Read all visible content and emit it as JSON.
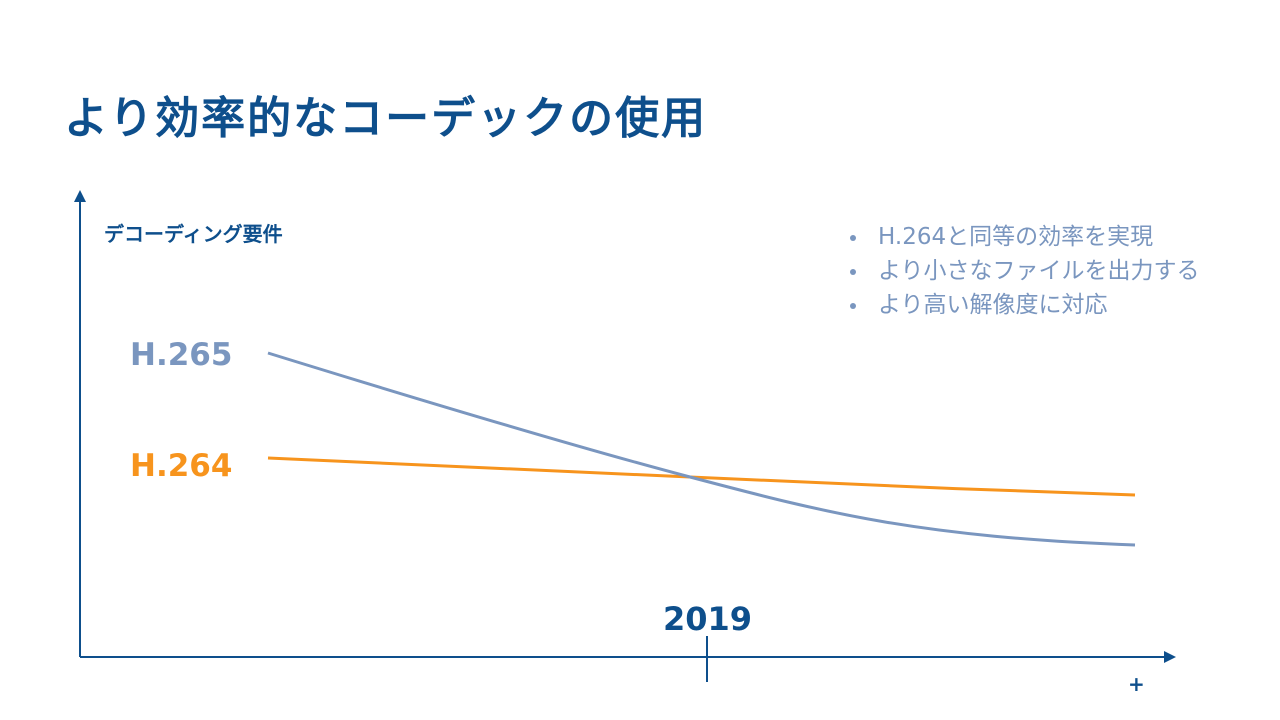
{
  "slide": {
    "title": "より効率的なコーデックの使用",
    "bullets": [
      "H.264と同等の効率を実現",
      "より小さなファイルを出力する",
      "より高い解像度に対応"
    ]
  },
  "chart_data": {
    "type": "line",
    "ylabel": "デコーディング要件",
    "x_marker": {
      "label": "2019"
    },
    "x_end_label": "+",
    "series": [
      {
        "name": "H.265",
        "color": "#7a96bf",
        "trend": "decreasing steeply, crossing H.264 at 2019 and ending below it"
      },
      {
        "name": "H.264",
        "color": "#f7941d",
        "trend": "decreasing slightly"
      }
    ],
    "axis_color": "#0e4f8c",
    "grid": false,
    "y_ticks_shown": false
  }
}
